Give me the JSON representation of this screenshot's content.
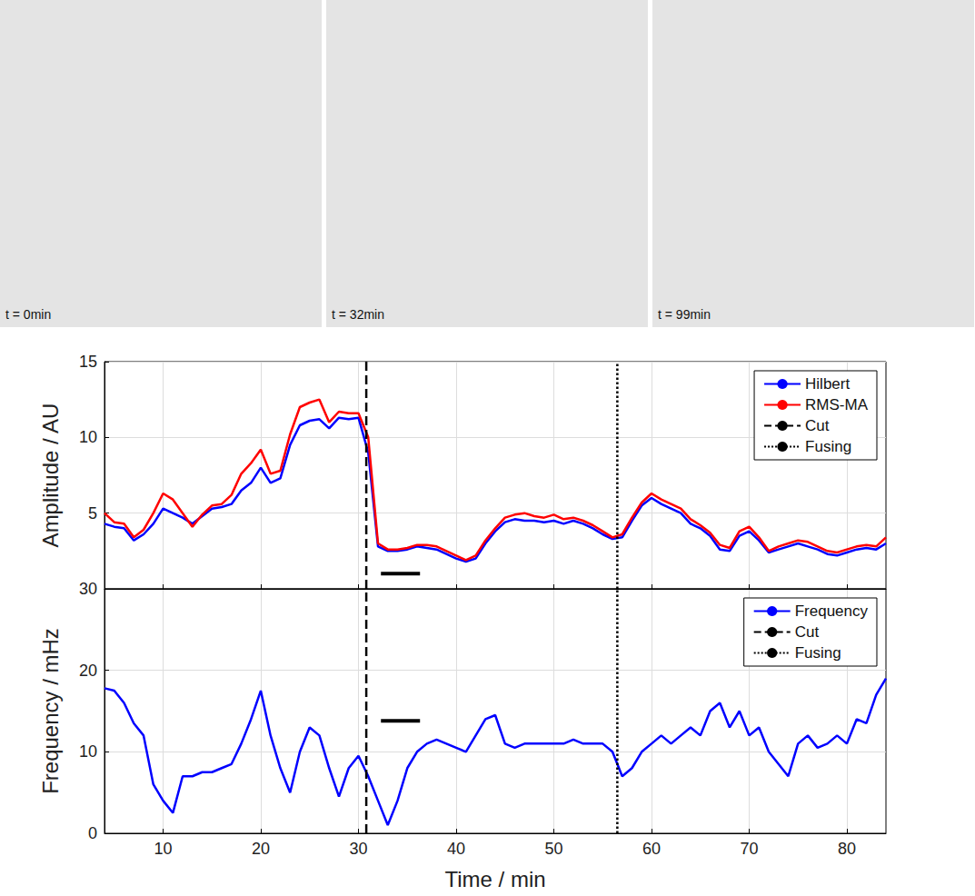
{
  "panels": [
    {
      "label": "t = 0min"
    },
    {
      "label": "t = 32min"
    },
    {
      "label": "t = 99min"
    }
  ],
  "chart_data": [
    {
      "type": "line",
      "ylabel": "Amplitude / AU",
      "x": [
        4,
        5,
        6,
        7,
        8,
        9,
        10,
        11,
        12,
        13,
        14,
        15,
        16,
        17,
        18,
        19,
        20,
        21,
        22,
        23,
        24,
        25,
        26,
        27,
        28,
        29,
        30,
        31,
        32,
        33,
        34,
        35,
        36,
        37,
        38,
        39,
        40,
        41,
        42,
        43,
        44,
        45,
        46,
        47,
        48,
        49,
        50,
        51,
        52,
        53,
        54,
        55,
        56,
        57,
        58,
        59,
        60,
        61,
        62,
        63,
        64,
        65,
        66,
        67,
        68,
        69,
        70,
        71,
        72,
        73,
        74,
        75,
        76,
        77,
        78,
        79,
        80,
        81,
        82,
        83,
        84
      ],
      "series": [
        {
          "name": "Hilbert",
          "color": "#0000ff",
          "line_style": "solid",
          "values": [
            4.3,
            4.1,
            4.0,
            3.2,
            3.6,
            4.3,
            5.3,
            5.0,
            4.7,
            4.3,
            4.8,
            5.3,
            5.4,
            5.6,
            6.5,
            7.0,
            8.0,
            7.0,
            7.3,
            9.5,
            10.8,
            11.1,
            11.2,
            10.6,
            11.3,
            11.2,
            11.3,
            9.0,
            2.8,
            2.5,
            2.5,
            2.6,
            2.8,
            2.7,
            2.6,
            2.3,
            2.0,
            1.8,
            2.0,
            3.0,
            3.8,
            4.4,
            4.6,
            4.5,
            4.5,
            4.4,
            4.5,
            4.3,
            4.5,
            4.3,
            4.0,
            3.6,
            3.3,
            3.4,
            4.5,
            5.5,
            6.0,
            5.6,
            5.3,
            5.0,
            4.3,
            4.0,
            3.5,
            2.6,
            2.5,
            3.5,
            3.8,
            3.2,
            2.4,
            2.6,
            2.8,
            3.0,
            2.8,
            2.6,
            2.3,
            2.2,
            2.4,
            2.6,
            2.7,
            2.6,
            3.0
          ]
        },
        {
          "name": "RMS-MA",
          "color": "#ff0000",
          "line_style": "solid",
          "values": [
            5.0,
            4.4,
            4.3,
            3.4,
            3.9,
            5.0,
            6.3,
            5.9,
            5.0,
            4.1,
            4.9,
            5.5,
            5.6,
            6.2,
            7.6,
            8.3,
            9.2,
            7.6,
            7.8,
            10.2,
            12.0,
            12.3,
            12.5,
            11.0,
            11.7,
            11.6,
            11.6,
            10.0,
            3.0,
            2.6,
            2.6,
            2.7,
            2.9,
            2.9,
            2.8,
            2.5,
            2.2,
            1.9,
            2.2,
            3.2,
            4.0,
            4.7,
            4.9,
            5.0,
            4.8,
            4.7,
            4.9,
            4.6,
            4.7,
            4.5,
            4.2,
            3.8,
            3.4,
            3.6,
            4.7,
            5.7,
            6.3,
            5.9,
            5.6,
            5.3,
            4.6,
            4.2,
            3.7,
            2.9,
            2.7,
            3.8,
            4.1,
            3.4,
            2.5,
            2.8,
            3.0,
            3.2,
            3.1,
            2.8,
            2.5,
            2.4,
            2.6,
            2.8,
            2.9,
            2.8,
            3.4
          ]
        }
      ],
      "vlines": [
        {
          "name": "Cut",
          "x": 30.8,
          "color": "#000000",
          "line_style": "dashed"
        },
        {
          "name": "Fusing",
          "x": 56.5,
          "color": "#000000",
          "line_style": "dotted"
        }
      ],
      "scale_bar": {
        "x": [
          32.3,
          36.3
        ],
        "y": 1.0,
        "color": "#000000"
      },
      "xlim": [
        4,
        84
      ],
      "xticks": [
        10,
        20,
        30,
        40,
        50,
        60,
        70,
        80
      ],
      "ylim": [
        0,
        15
      ],
      "yticks": [
        5,
        10,
        15
      ],
      "grid": true,
      "legend": "upper right",
      "tick_labels": "y"
    },
    {
      "type": "line",
      "xlabel": "Time / min",
      "ylabel": "Frequency / mHz",
      "x": [
        4,
        5,
        6,
        7,
        8,
        9,
        10,
        11,
        12,
        13,
        14,
        15,
        16,
        17,
        18,
        19,
        20,
        21,
        22,
        23,
        24,
        25,
        26,
        27,
        28,
        29,
        30,
        31,
        32,
        33,
        34,
        35,
        36,
        37,
        38,
        39,
        40,
        41,
        42,
        43,
        44,
        45,
        46,
        47,
        48,
        49,
        50,
        51,
        52,
        53,
        54,
        55,
        56,
        57,
        58,
        59,
        60,
        61,
        62,
        63,
        64,
        65,
        66,
        67,
        68,
        69,
        70,
        71,
        72,
        73,
        74,
        75,
        76,
        77,
        78,
        79,
        80,
        81,
        82,
        83,
        84
      ],
      "series": [
        {
          "name": "Frequency",
          "color": "#0000ff",
          "line_style": "solid",
          "values": [
            17.8,
            17.5,
            16,
            13.5,
            12,
            6,
            4,
            2.5,
            7,
            7,
            7.5,
            7.5,
            8,
            8.5,
            11,
            14,
            17.5,
            12,
            8,
            5,
            10,
            13,
            12,
            8,
            4.5,
            8,
            9.5,
            7,
            4,
            1,
            4,
            8,
            10,
            11,
            11.5,
            11,
            10.5,
            10,
            12,
            14,
            14.5,
            11,
            10.5,
            11,
            11,
            11,
            11,
            11,
            11.5,
            11,
            11,
            11,
            10,
            7,
            8,
            10,
            11,
            12,
            11,
            12,
            13,
            12,
            15,
            16,
            13,
            15,
            12,
            13,
            10,
            8.5,
            7,
            11,
            12,
            10.5,
            11,
            12,
            11,
            14,
            13.5,
            17,
            19
          ]
        }
      ],
      "vlines": [
        {
          "name": "Cut",
          "x": 30.8,
          "color": "#000000",
          "line_style": "dashed"
        },
        {
          "name": "Fusing",
          "x": 56.5,
          "color": "#000000",
          "line_style": "dotted"
        }
      ],
      "scale_bar": {
        "x": [
          32.3,
          36.3
        ],
        "y": 13.8,
        "color": "#000000"
      },
      "xlim": [
        4,
        84
      ],
      "xticks": [
        10,
        20,
        30,
        40,
        50,
        60,
        70,
        80
      ],
      "ylim": [
        0,
        30
      ],
      "yticks": [
        0,
        10,
        20,
        30
      ],
      "grid": true,
      "legend": "upper right"
    }
  ]
}
